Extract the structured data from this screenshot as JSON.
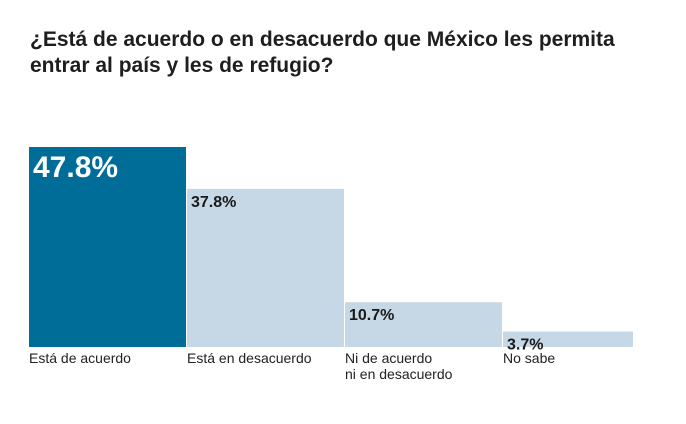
{
  "chart_data": {
    "type": "bar",
    "title": "¿Está de acuerdo o en desacuerdo que México les permita entrar al país y les de refugio?",
    "categories": [
      [
        "Está de acuerdo"
      ],
      [
        "Está en desacuerdo"
      ],
      [
        "Ni de acuerdo",
        "ni en desacuerdo"
      ],
      [
        "No sabe"
      ]
    ],
    "values": [
      47.8,
      37.8,
      10.7,
      3.7
    ],
    "value_labels": [
      "47.8%",
      "37.8%",
      "10.7%",
      "3.7%"
    ],
    "highlight_index": 0,
    "ylim": [
      0,
      47.8
    ],
    "grid": false,
    "legend": "none"
  },
  "colors": {
    "highlight": "#006d98",
    "bar": "#c6d7e6",
    "highlight_text": "#ffffff",
    "text": "#1a1a1a"
  }
}
